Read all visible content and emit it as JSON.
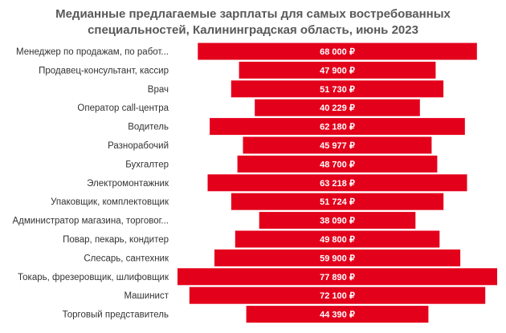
{
  "chart_data": {
    "type": "bar",
    "orientation": "horizontal",
    "layout": "centered",
    "title_lines": [
      "Медианные предлагаемые зарплаты для самых востребованных",
      "специальностей, Калининградская область, июнь 2023"
    ],
    "categories": [
      "Менеджер по продажам, по работ...",
      "Продавец-консультант, кассир",
      "Врач",
      "Оператор call-центра",
      "Водитель",
      "Разнорабочий",
      "Бухгалтер",
      "Электромонтажник",
      "Упаковщик, комплектовщик",
      "Администратор магазина, торговог...",
      "Повар, пекарь, кондитер",
      "Слесарь, сантехник",
      "Токарь, фрезеровщик, шлифовщик",
      "Машинист",
      "Торговый представитель"
    ],
    "values": [
      68000,
      47900,
      51730,
      40229,
      62180,
      45977,
      48700,
      63218,
      51724,
      38090,
      49800,
      59900,
      77890,
      72100,
      44390
    ],
    "value_labels": [
      "68 000 ₽",
      "47 900 ₽",
      "51 730 ₽",
      "40 229 ₽",
      "62 180 ₽",
      "45 977 ₽",
      "48 700 ₽",
      "63 218 ₽",
      "51 724 ₽",
      "38 090 ₽",
      "49 800 ₽",
      "59 900 ₽",
      "77 890 ₽",
      "72 100 ₽",
      "44 390 ₽"
    ],
    "bar_color": "#e3001b",
    "label_color": "#ffffff",
    "grid": false,
    "legend": "none"
  }
}
